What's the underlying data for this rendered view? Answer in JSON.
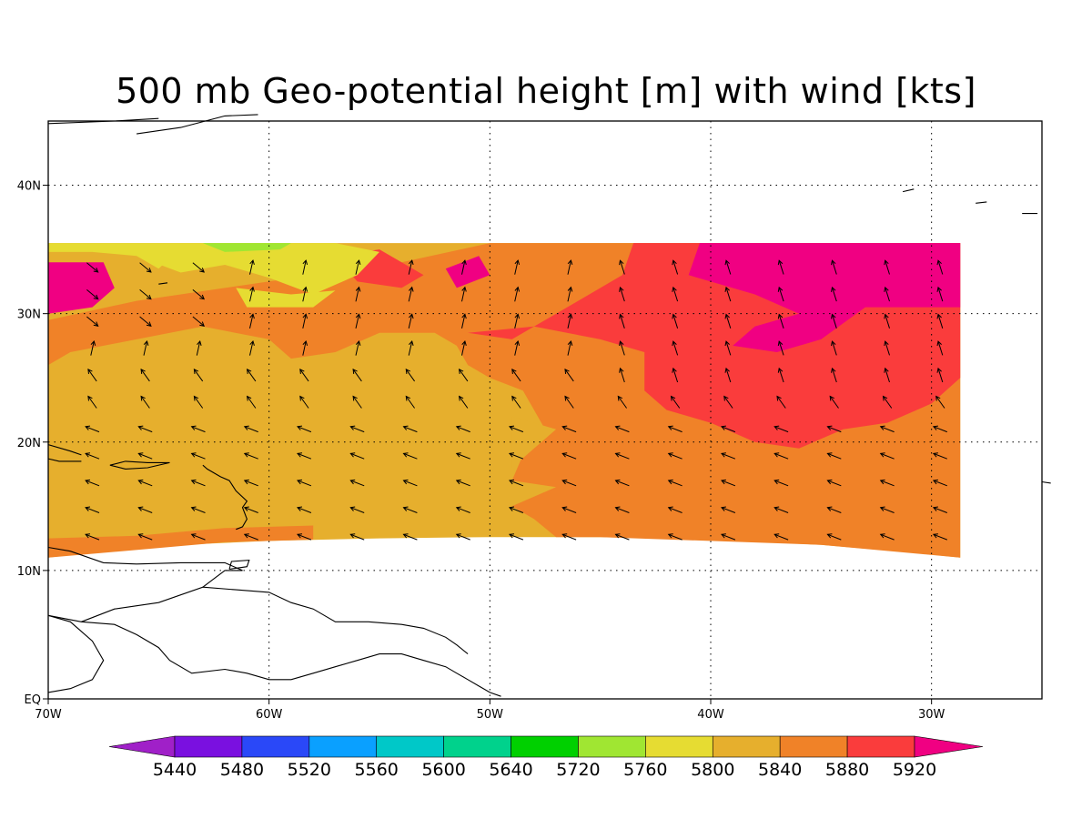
{
  "title": "500 mb Geo-potential height [m] with wind [kts]",
  "map": {
    "lon_range": [
      -70,
      -25
    ],
    "lat_range": [
      0,
      45
    ],
    "lon_ticks": [
      {
        "value": -70,
        "label": "70W"
      },
      {
        "value": -60,
        "label": "60W"
      },
      {
        "value": -50,
        "label": "50W"
      },
      {
        "value": -40,
        "label": "40W"
      },
      {
        "value": -30,
        "label": "30W"
      }
    ],
    "lat_ticks": [
      {
        "value": 0,
        "label": "EQ"
      },
      {
        "value": 10,
        "label": "10N"
      },
      {
        "value": 20,
        "label": "20N"
      },
      {
        "value": 30,
        "label": "30N"
      },
      {
        "value": 40,
        "label": "40N"
      }
    ],
    "grid": "dotted",
    "data_extent": {
      "lon": [
        -70,
        -28.7
      ],
      "lat_north": 35.5,
      "lat_south_west": 11,
      "lat_south_east": 11
    }
  },
  "colorbar": {
    "levels": [
      "5440",
      "5480",
      "5520",
      "5560",
      "5600",
      "5640",
      "5720",
      "5760",
      "5800",
      "5840",
      "5880",
      "5920"
    ],
    "colors": [
      "#a020c8",
      "#7a10e0",
      "#2a48f8",
      "#0aa0ff",
      "#00c8c8",
      "#00d28c",
      "#00d000",
      "#a0e632",
      "#e6dc32",
      "#e6af2d",
      "#f08228",
      "#fa3c3c",
      "#f00082"
    ]
  },
  "shading_colors": {
    "c5760": "#a0e632",
    "c5800": "#e6dc32",
    "c5840": "#e6af2d",
    "c5880": "#f08228",
    "c5920": "#fa3c3c",
    "c5960": "#f00082"
  }
}
